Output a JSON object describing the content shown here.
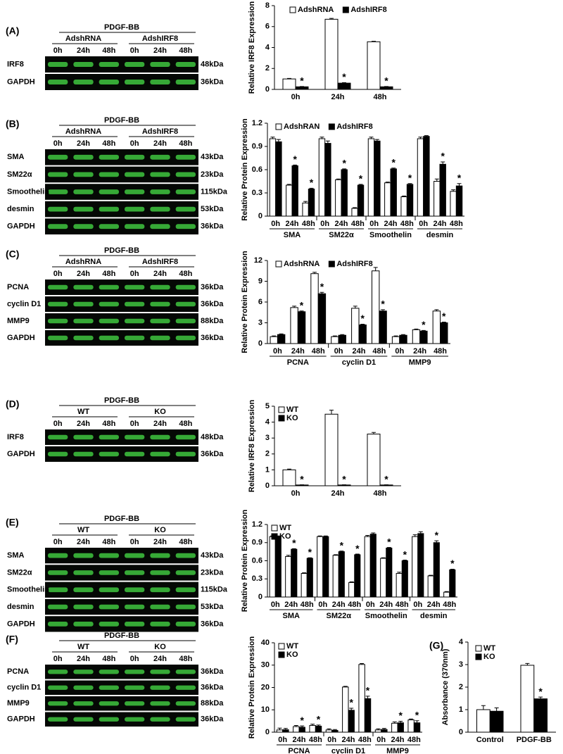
{
  "blots": [
    {
      "label": "(A)",
      "treatment": "PDGF-BB",
      "groups": [
        "AdshRNA",
        "AdshIRF8"
      ],
      "lanes": [
        "0h",
        "24h",
        "48h",
        "0h",
        "24h",
        "48h"
      ],
      "rows": [
        {
          "name": "IRF8",
          "size": "48kDa"
        },
        {
          "name": "GAPDH",
          "size": "36kDa"
        }
      ]
    },
    {
      "label": "(B)",
      "treatment": "PDGF-BB",
      "groups": [
        "AdshRNA",
        "AdshIRF8"
      ],
      "lanes": [
        "0h",
        "24h",
        "48h",
        "0h",
        "24h",
        "48h"
      ],
      "rows": [
        {
          "name": "SMA",
          "size": "43kDa"
        },
        {
          "name": "SM22α",
          "size": "23kDa"
        },
        {
          "name": "Smoothelin",
          "size": "115kDa"
        },
        {
          "name": "desmin",
          "size": "53kDa"
        },
        {
          "name": "GAPDH",
          "size": "36kDa"
        }
      ]
    },
    {
      "label": "(C)",
      "treatment": "PDGF-BB",
      "groups": [
        "AdshRNA",
        "AdshIRF8"
      ],
      "lanes": [
        "0h",
        "24h",
        "48h",
        "0h",
        "24h",
        "48h"
      ],
      "rows": [
        {
          "name": "PCNA",
          "size": "36kDa"
        },
        {
          "name": "cyclin D1",
          "size": "36kDa"
        },
        {
          "name": "MMP9",
          "size": "88kDa"
        },
        {
          "name": "GAPDH",
          "size": "36kDa"
        }
      ]
    },
    {
      "label": "(D)",
      "treatment": "PDGF-BB",
      "groups": [
        "WT",
        "KO"
      ],
      "lanes": [
        "0h",
        "24h",
        "48h",
        "0h",
        "24h",
        "48h"
      ],
      "rows": [
        {
          "name": "IRF8",
          "size": "48kDa"
        },
        {
          "name": "GAPDH",
          "size": "36kDa"
        }
      ]
    },
    {
      "label": "(E)",
      "treatment": "PDGF-BB",
      "groups": [
        "WT",
        "KO"
      ],
      "lanes": [
        "0h",
        "24h",
        "48h",
        "0h",
        "24h",
        "48h"
      ],
      "rows": [
        {
          "name": "SMA",
          "size": "43kDa"
        },
        {
          "name": "SM22α",
          "size": "23kDa"
        },
        {
          "name": "Smoothelin",
          "size": "115kDa"
        },
        {
          "name": "desmin",
          "size": "53kDa"
        },
        {
          "name": "GAPDH",
          "size": "36kDa"
        }
      ]
    },
    {
      "label": "(F)",
      "treatment": "PDGF-BB",
      "groups": [
        "WT",
        "KO"
      ],
      "lanes": [
        "0h",
        "24h",
        "48h",
        "0h",
        "24h",
        "48h"
      ],
      "rows": [
        {
          "name": "PCNA",
          "size": "36kDa"
        },
        {
          "name": "cyclin D1",
          "size": "36kDa"
        },
        {
          "name": "MMP9",
          "size": "88kDa"
        },
        {
          "name": "GAPDH",
          "size": "36kDa"
        }
      ]
    }
  ],
  "chart_data": [
    {
      "type": "bar",
      "y_label": "Relative IRF8  Expression",
      "categories": [
        "0h",
        "24h",
        "48h"
      ],
      "ylim": [
        0,
        8
      ],
      "yticks": [
        0,
        2,
        4,
        6,
        8
      ],
      "series": [
        {
          "name": "AdshRNA",
          "color": "#ffffff",
          "values": [
            1.0,
            6.7,
            4.55
          ],
          "errors": [
            0.05,
            0.08,
            0.05
          ],
          "annotations": [
            null,
            null,
            null
          ]
        },
        {
          "name": "AdshIRF8",
          "color": "#000000",
          "values": [
            0.25,
            0.6,
            0.25
          ],
          "errors": [
            0.03,
            0.05,
            0.03
          ],
          "annotations": [
            "*",
            "*",
            "*"
          ]
        }
      ]
    },
    {
      "type": "bar",
      "y_label": "Relative Protein Expression",
      "categories": [
        "0h",
        "24h",
        "48h",
        "0h",
        "24h",
        "48h",
        "0h",
        "24h",
        "48h",
        "0h",
        "24h",
        "48h"
      ],
      "groups": [
        "SMA",
        "SM22α",
        "Smoothelin",
        "desmin"
      ],
      "ylim": [
        0,
        1.2
      ],
      "yticks": [
        0,
        0.3,
        0.6,
        0.9,
        1.2
      ],
      "series": [
        {
          "name": "AdshRAN",
          "color": "#ffffff",
          "values": [
            1.0,
            0.4,
            0.17,
            1.0,
            0.47,
            0.1,
            1.0,
            0.43,
            0.25,
            1.0,
            0.45,
            0.32
          ],
          "errors": [
            0.02,
            0.01,
            0.02,
            0.02,
            0.01,
            0.01,
            0.02,
            0.01,
            0.01,
            0.02,
            0.03,
            0.02
          ],
          "annotations": [
            null,
            null,
            null,
            null,
            null,
            null,
            null,
            null,
            null,
            null,
            null,
            null
          ]
        },
        {
          "name": "AdshIRF8",
          "color": "#000000",
          "values": [
            0.96,
            0.65,
            0.35,
            0.94,
            0.6,
            0.4,
            0.97,
            0.61,
            0.41,
            1.03,
            0.67,
            0.39
          ],
          "errors": [
            0.03,
            0.01,
            0.01,
            0.03,
            0.01,
            0.01,
            0.02,
            0.01,
            0.01,
            0.01,
            0.03,
            0.03
          ],
          "annotations": [
            null,
            "*",
            "*",
            null,
            "*",
            "*",
            null,
            "*",
            "*",
            null,
            "*",
            "*"
          ]
        }
      ]
    },
    {
      "type": "bar",
      "y_label": "Relative Protein Expression",
      "categories": [
        "0h",
        "24h",
        "48h",
        "0h",
        "24h",
        "48h",
        "0h",
        "24h",
        "48h"
      ],
      "groups": [
        "PCNA",
        "cyclin D1",
        "MMP9"
      ],
      "ylim": [
        0,
        12
      ],
      "yticks": [
        0,
        3,
        6,
        9,
        12
      ],
      "series": [
        {
          "name": "AdshRNA",
          "color": "#ffffff",
          "values": [
            1.0,
            5.2,
            10.1,
            1.0,
            5.1,
            10.5,
            1.0,
            2.0,
            4.7
          ],
          "errors": [
            0.1,
            0.2,
            0.2,
            0.1,
            0.3,
            0.5,
            0.1,
            0.1,
            0.2
          ],
          "annotations": [
            null,
            null,
            null,
            null,
            null,
            null,
            null,
            null,
            null
          ]
        },
        {
          "name": "AdshIRF8",
          "color": "#000000",
          "values": [
            1.3,
            4.6,
            7.2,
            1.2,
            2.7,
            4.7,
            1.2,
            1.8,
            3.0
          ],
          "errors": [
            0.1,
            0.1,
            0.2,
            0.1,
            0.1,
            0.2,
            0.1,
            0.1,
            0.1
          ],
          "annotations": [
            null,
            "*",
            "*",
            null,
            "*",
            "*",
            null,
            "*",
            "*"
          ]
        }
      ]
    },
    {
      "type": "bar",
      "y_label": "Relative IRF8  Expression",
      "categories": [
        "0h",
        "24h",
        "48h"
      ],
      "ylim": [
        0,
        5
      ],
      "yticks": [
        0,
        1,
        2,
        3,
        4,
        5
      ],
      "series": [
        {
          "name": "WT",
          "color": "#ffffff",
          "values": [
            1.0,
            4.5,
            3.25
          ],
          "errors": [
            0.05,
            0.25,
            0.1
          ],
          "annotations": [
            null,
            null,
            null
          ]
        },
        {
          "name": "KO",
          "color": "#000000",
          "values": [
            0.05,
            0.05,
            0.05
          ],
          "errors": [
            0.01,
            0.01,
            0.01
          ],
          "annotations": [
            "*",
            "*",
            "*"
          ]
        }
      ]
    },
    {
      "type": "bar",
      "y_label": "Relative Protein Expression",
      "categories": [
        "0h",
        "24h",
        "48h",
        "0h",
        "24h",
        "48h",
        "0h",
        "24h",
        "48h",
        "0h",
        "24h",
        "48h"
      ],
      "groups": [
        "SMA",
        "SM22α",
        "Smoothelin",
        "desmin"
      ],
      "ylim": [
        0,
        1.2
      ],
      "yticks": [
        0,
        0.3,
        0.6,
        0.9,
        1.2
      ],
      "series": [
        {
          "name": "WT",
          "color": "#ffffff",
          "values": [
            1.0,
            0.67,
            0.39,
            1.0,
            0.69,
            0.24,
            1.0,
            0.64,
            0.39,
            1.0,
            0.35,
            0.08
          ],
          "errors": [
            0.01,
            0.02,
            0.01,
            0.01,
            0.01,
            0.01,
            0.02,
            0.01,
            0.02,
            0.03,
            0.01,
            0.01
          ],
          "annotations": [
            null,
            null,
            null,
            null,
            null,
            null,
            null,
            null,
            null,
            null,
            null,
            null
          ]
        },
        {
          "name": "KO",
          "color": "#000000",
          "values": [
            1.0,
            0.79,
            0.64,
            1.0,
            0.75,
            0.7,
            1.04,
            0.81,
            0.6,
            1.05,
            0.9,
            0.45
          ],
          "errors": [
            0.01,
            0.01,
            0.01,
            0.01,
            0.01,
            0.01,
            0.02,
            0.01,
            0.01,
            0.03,
            0.03,
            0.01
          ],
          "annotations": [
            null,
            "*",
            "*",
            null,
            "*",
            "*",
            null,
            "*",
            "*",
            null,
            "*",
            "*"
          ]
        }
      ]
    },
    {
      "type": "bar",
      "y_label": "Relative Protein Expression",
      "categories": [
        "0h",
        "24h",
        "48h",
        "0h",
        "24h",
        "48h",
        "0h",
        "24h",
        "48h"
      ],
      "groups": [
        "PCNA",
        "cyclin D1",
        "MMP9"
      ],
      "ylim": [
        0,
        40
      ],
      "yticks": [
        0,
        10,
        20,
        30,
        40
      ],
      "series": [
        {
          "name": "WT",
          "color": "#ffffff",
          "values": [
            1.0,
            2.5,
            3.0,
            1.0,
            20.2,
            30.3,
            1.0,
            4.0,
            5.5
          ],
          "errors": [
            0.8,
            0.5,
            0.6,
            0.5,
            0.3,
            0.4,
            0.5,
            0.6,
            0.4
          ],
          "annotations": [
            null,
            null,
            null,
            null,
            null,
            null,
            null,
            null,
            null
          ]
        },
        {
          "name": "KO",
          "color": "#000000",
          "values": [
            1.1,
            2.2,
            2.7,
            0.8,
            9.8,
            15.0,
            1.2,
            4.2,
            4.2
          ],
          "errors": [
            0.6,
            0.6,
            0.5,
            0.4,
            0.9,
            1.1,
            0.5,
            0.7,
            0.9
          ],
          "annotations": [
            null,
            "*",
            "*",
            null,
            "*",
            "*",
            null,
            "*",
            "*"
          ]
        }
      ]
    },
    {
      "type": "bar",
      "label": "(G)",
      "y_label": "Absorbance (370nm)",
      "categories": [
        "Control",
        "PDGF-BB"
      ],
      "ylim": [
        0,
        4
      ],
      "yticks": [
        0,
        1,
        2,
        3,
        4
      ],
      "series": [
        {
          "name": "WT",
          "color": "#ffffff",
          "values": [
            1.0,
            2.97
          ],
          "errors": [
            0.18,
            0.08
          ],
          "annotations": [
            null,
            null
          ]
        },
        {
          "name": "KO",
          "color": "#000000",
          "values": [
            0.93,
            1.48
          ],
          "errors": [
            0.15,
            0.08
          ],
          "annotations": [
            null,
            "*"
          ]
        }
      ]
    }
  ]
}
